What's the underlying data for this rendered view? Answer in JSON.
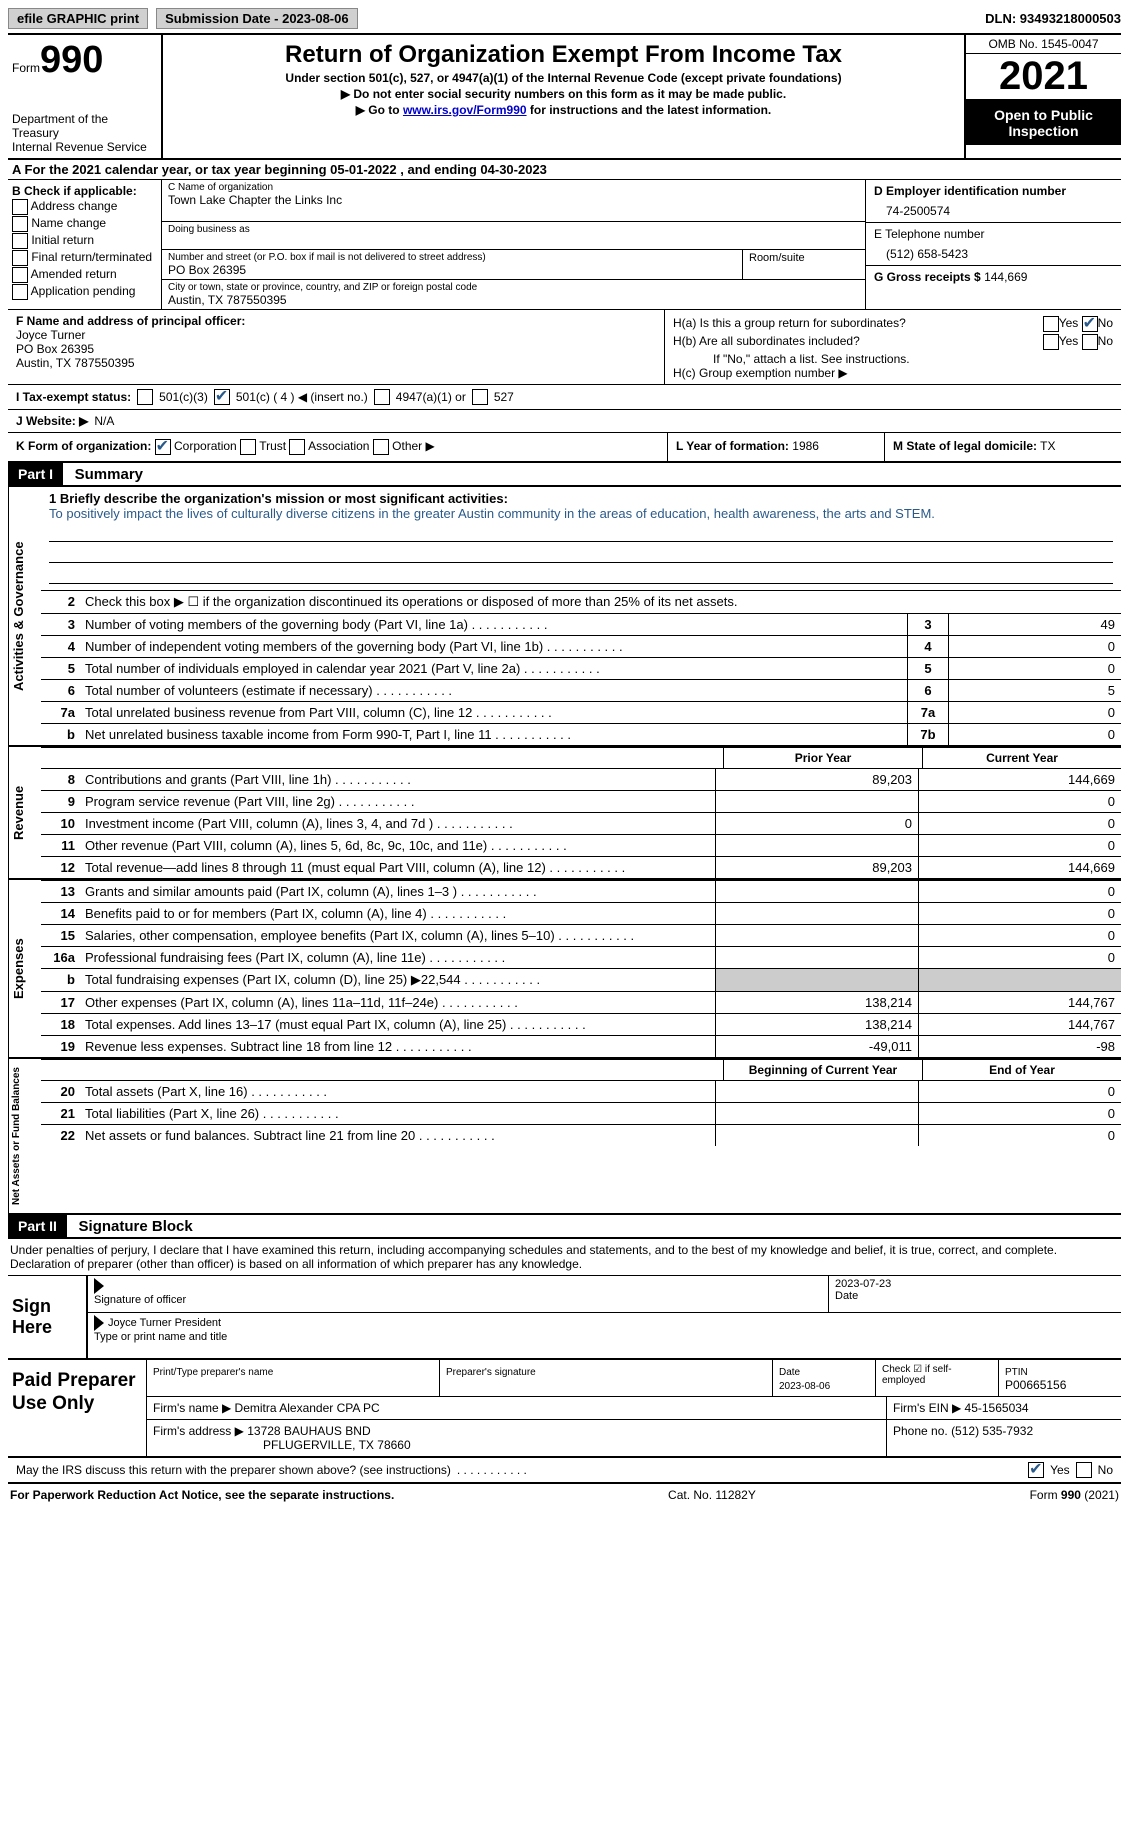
{
  "topbar": {
    "efile": "efile GRAPHIC print",
    "submission": "Submission Date - 2023-08-06",
    "dln": "DLN: 93493218000503"
  },
  "header": {
    "form_word": "Form",
    "form_num": "990",
    "dept": "Department of the Treasury",
    "irs": "Internal Revenue Service",
    "title": "Return of Organization Exempt From Income Tax",
    "sub1": "Under section 501(c), 527, or 4947(a)(1) of the Internal Revenue Code (except private foundations)",
    "sub2": "▶ Do not enter social security numbers on this form as it may be made public.",
    "sub3_pre": "▶ Go to ",
    "sub3_link": "www.irs.gov/Form990",
    "sub3_post": " for instructions and the latest information.",
    "omb": "OMB No. 1545-0047",
    "year": "2021",
    "open": "Open to Public Inspection"
  },
  "row_a": "A For the 2021 calendar year, or tax year beginning 05-01-2022    , and ending 04-30-2023",
  "col_b": {
    "title": "B Check if applicable:",
    "opts": [
      "Address change",
      "Name change",
      "Initial return",
      "Final return/terminated",
      "Amended return",
      "Application pending"
    ]
  },
  "col_c": {
    "name_label": "C Name of organization",
    "name": "Town Lake Chapter the Links Inc",
    "dba": "Doing business as",
    "addr_label": "Number and street (or P.O. box if mail is not delivered to street address)",
    "room": "Room/suite",
    "addr": "PO Box 26395",
    "city_label": "City or town, state or province, country, and ZIP or foreign postal code",
    "city": "Austin, TX  787550395"
  },
  "col_d": {
    "ein_label": "D Employer identification number",
    "ein": "74-2500574",
    "tel_label": "E Telephone number",
    "tel": "(512) 658-5423",
    "gross_label": "G Gross receipts $",
    "gross": "144,669"
  },
  "col_f": {
    "label": "F Name and address of principal officer:",
    "name": "Joyce Turner",
    "addr1": "PO Box 26395",
    "addr2": "Austin, TX  787550395"
  },
  "col_h": {
    "a": "H(a)  Is this a group return for subordinates?",
    "b": "H(b)  Are all subordinates included?",
    "b_note": "If \"No,\" attach a list. See instructions.",
    "c": "H(c)  Group exemption number ▶",
    "yes": "Yes",
    "no": "No"
  },
  "row_i": {
    "label": "I   Tax-exempt status:",
    "o1": "501(c)(3)",
    "o2": "501(c) ( 4 ) ◀ (insert no.)",
    "o3": "4947(a)(1) or",
    "o4": "527"
  },
  "row_j": {
    "label": "J   Website: ▶",
    "val": "N/A"
  },
  "row_k": {
    "label": "K Form of organization:",
    "corp": "Corporation",
    "trust": "Trust",
    "assoc": "Association",
    "other": "Other ▶",
    "l_label": "L Year of formation:",
    "l_val": "1986",
    "m_label": "M State of legal domicile:",
    "m_val": "TX"
  },
  "part1": {
    "header": "Part I",
    "title": "Summary",
    "vlabels": [
      "Activities & Governance",
      "Revenue",
      "Expenses",
      "Net Assets or Fund Balances"
    ],
    "line1_label": "1   Briefly describe the organization's mission or most significant activities:",
    "line1_text": "To positively impact the lives of culturally diverse citizens in the greater Austin community in the areas of education, health awareness, the arts and STEM.",
    "line2": "Check this box ▶ ☐  if the organization discontinued its operations or disposed of more than 25% of its net assets.",
    "lines_gov": [
      {
        "n": "3",
        "d": "Number of voting members of the governing body (Part VI, line 1a)",
        "b": "3",
        "v": "49"
      },
      {
        "n": "4",
        "d": "Number of independent voting members of the governing body (Part VI, line 1b)",
        "b": "4",
        "v": "0"
      },
      {
        "n": "5",
        "d": "Total number of individuals employed in calendar year 2021 (Part V, line 2a)",
        "b": "5",
        "v": "0"
      },
      {
        "n": "6",
        "d": "Total number of volunteers (estimate if necessary)",
        "b": "6",
        "v": "5"
      },
      {
        "n": "7a",
        "d": "Total unrelated business revenue from Part VIII, column (C), line 12",
        "b": "7a",
        "v": "0"
      },
      {
        "n": "b",
        "d": "Net unrelated business taxable income from Form 990-T, Part I, line 11",
        "b": "7b",
        "v": "0"
      }
    ],
    "col_prior": "Prior Year",
    "col_current": "Current Year",
    "lines_rev": [
      {
        "n": "8",
        "d": "Contributions and grants (Part VIII, line 1h)",
        "p": "89,203",
        "c": "144,669"
      },
      {
        "n": "9",
        "d": "Program service revenue (Part VIII, line 2g)",
        "p": "",
        "c": "0"
      },
      {
        "n": "10",
        "d": "Investment income (Part VIII, column (A), lines 3, 4, and 7d )",
        "p": "0",
        "c": "0"
      },
      {
        "n": "11",
        "d": "Other revenue (Part VIII, column (A), lines 5, 6d, 8c, 9c, 10c, and 11e)",
        "p": "",
        "c": "0"
      },
      {
        "n": "12",
        "d": "Total revenue—add lines 8 through 11 (must equal Part VIII, column (A), line 12)",
        "p": "89,203",
        "c": "144,669"
      }
    ],
    "lines_exp": [
      {
        "n": "13",
        "d": "Grants and similar amounts paid (Part IX, column (A), lines 1–3 )",
        "p": "",
        "c": "0"
      },
      {
        "n": "14",
        "d": "Benefits paid to or for members (Part IX, column (A), line 4)",
        "p": "",
        "c": "0"
      },
      {
        "n": "15",
        "d": "Salaries, other compensation, employee benefits (Part IX, column (A), lines 5–10)",
        "p": "",
        "c": "0"
      },
      {
        "n": "16a",
        "d": "Professional fundraising fees (Part IX, column (A), line 11e)",
        "p": "",
        "c": "0"
      },
      {
        "n": "b",
        "d": "Total fundraising expenses (Part IX, column (D), line 25) ▶22,544",
        "p": "GRAY",
        "c": "GRAY"
      },
      {
        "n": "17",
        "d": "Other expenses (Part IX, column (A), lines 11a–11d, 11f–24e)",
        "p": "138,214",
        "c": "144,767"
      },
      {
        "n": "18",
        "d": "Total expenses. Add lines 13–17 (must equal Part IX, column (A), line 25)",
        "p": "138,214",
        "c": "144,767"
      },
      {
        "n": "19",
        "d": "Revenue less expenses. Subtract line 18 from line 12",
        "p": "-49,011",
        "c": "-98"
      }
    ],
    "col_begin": "Beginning of Current Year",
    "col_end": "End of Year",
    "lines_net": [
      {
        "n": "20",
        "d": "Total assets (Part X, line 16)",
        "p": "",
        "c": "0"
      },
      {
        "n": "21",
        "d": "Total liabilities (Part X, line 26)",
        "p": "",
        "c": "0"
      },
      {
        "n": "22",
        "d": "Net assets or fund balances. Subtract line 21 from line 20",
        "p": "",
        "c": "0"
      }
    ]
  },
  "part2": {
    "header": "Part II",
    "title": "Signature Block",
    "declare": "Under penalties of perjury, I declare that I have examined this return, including accompanying schedules and statements, and to the best of my knowledge and belief, it is true, correct, and complete. Declaration of preparer (other than officer) is based on all information of which preparer has any knowledge.",
    "sign_here": "Sign Here",
    "sig_officer": "Signature of officer",
    "sig_date": "2023-07-23",
    "date_label": "Date",
    "officer_name": "Joyce Turner  President",
    "type_name": "Type or print name and title",
    "paid_prep": "Paid Preparer Use Only",
    "print_name": "Print/Type preparer's name",
    "prep_sig": "Preparer's signature",
    "prep_date_label": "Date",
    "prep_date": "2023-08-06",
    "check_if": "Check ☑ if self-employed",
    "ptin_label": "PTIN",
    "ptin": "P00665156",
    "firm_name_label": "Firm's name    ▶",
    "firm_name": "Demitra Alexander CPA PC",
    "firm_ein_label": "Firm's EIN ▶",
    "firm_ein": "45-1565034",
    "firm_addr_label": "Firm's address ▶",
    "firm_addr1": "13728 BAUHAUS BND",
    "firm_addr2": "PFLUGERVILLE, TX  78660",
    "phone_label": "Phone no.",
    "phone": "(512) 535-7932",
    "discuss": "May the IRS discuss this return with the preparer shown above? (see instructions)",
    "yes": "Yes",
    "no": "No"
  },
  "footer": {
    "left": "For Paperwork Reduction Act Notice, see the separate instructions.",
    "center": "Cat. No. 11282Y",
    "right_form": "Form ",
    "right_num": "990",
    "right_year": " (2021)"
  }
}
